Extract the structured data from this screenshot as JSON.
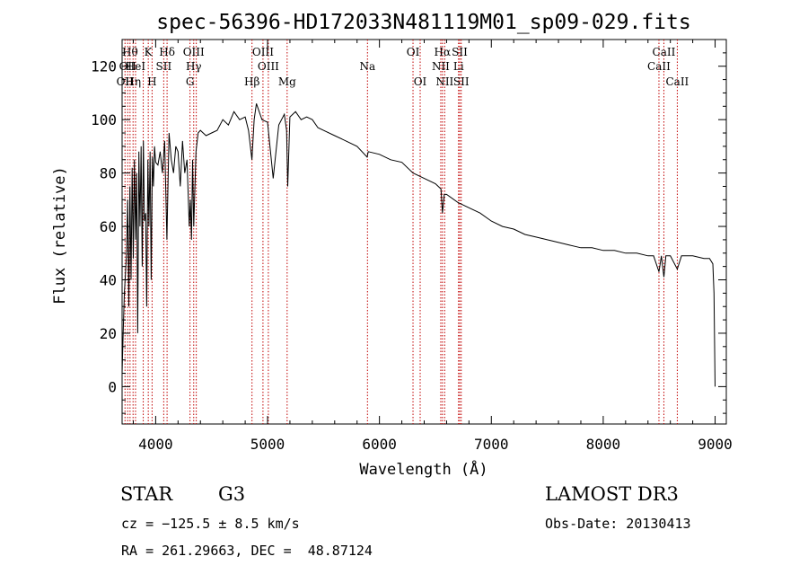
{
  "chart_data": {
    "type": "line",
    "title": "spec-56396-HD172033N481119M01_sp09-029.fits",
    "xlabel": "Wavelength (Å)",
    "ylabel": "Flux (relative)",
    "xlim": [
      3700,
      9100
    ],
    "ylim": [
      -14,
      130
    ],
    "xticks": [
      4000,
      5000,
      6000,
      7000,
      8000,
      9000
    ],
    "yticks": [
      0,
      20,
      40,
      60,
      80,
      100,
      120
    ],
    "grid": false,
    "series": [
      {
        "name": "flux",
        "x": [
          3700,
          3710,
          3720,
          3730,
          3740,
          3750,
          3760,
          3770,
          3780,
          3790,
          3800,
          3810,
          3820,
          3830,
          3840,
          3850,
          3860,
          3870,
          3880,
          3890,
          3900,
          3910,
          3920,
          3930,
          3940,
          3950,
          3960,
          3970,
          3980,
          3990,
          4000,
          4020,
          4040,
          4060,
          4080,
          4100,
          4120,
          4140,
          4160,
          4180,
          4200,
          4220,
          4240,
          4260,
          4280,
          4300,
          4310,
          4320,
          4330,
          4340,
          4360,
          4380,
          4400,
          4450,
          4500,
          4550,
          4600,
          4650,
          4700,
          4750,
          4800,
          4830,
          4860,
          4880,
          4900,
          4950,
          5000,
          5050,
          5100,
          5150,
          5170,
          5180,
          5200,
          5250,
          5300,
          5350,
          5400,
          5450,
          5500,
          5600,
          5700,
          5800,
          5890,
          5900,
          6000,
          6100,
          6200,
          6300,
          6400,
          6500,
          6550,
          6563,
          6580,
          6600,
          6700,
          6800,
          6900,
          7000,
          7100,
          7200,
          7300,
          7400,
          7500,
          7600,
          7700,
          7800,
          7900,
          8000,
          8100,
          8200,
          8300,
          8400,
          8450,
          8498,
          8520,
          8542,
          8560,
          8600,
          8662,
          8700,
          8800,
          8900,
          8950,
          8980,
          8990,
          9000
        ],
        "y": [
          5,
          20,
          35,
          42,
          50,
          70,
          30,
          75,
          40,
          82,
          48,
          85,
          55,
          80,
          20,
          88,
          60,
          90,
          45,
          92,
          62,
          65,
          30,
          85,
          60,
          88,
          40,
          86,
          75,
          90,
          84,
          83,
          88,
          80,
          92,
          55,
          95,
          85,
          80,
          90,
          88,
          75,
          92,
          80,
          85,
          60,
          70,
          55,
          85,
          60,
          88,
          95,
          96,
          94,
          95,
          96,
          100,
          98,
          103,
          100,
          101,
          96,
          85,
          100,
          106,
          100,
          99,
          78,
          98,
          102,
          96,
          75,
          101,
          103,
          100,
          101,
          100,
          97,
          96,
          94,
          92,
          90,
          86,
          88,
          87,
          85,
          84,
          80,
          78,
          76,
          74,
          65,
          72,
          72,
          69,
          67,
          65,
          62,
          60,
          59,
          57,
          56,
          55,
          54,
          53,
          52,
          52,
          51,
          51,
          50,
          50,
          49,
          49,
          43,
          49,
          41,
          49,
          49,
          44,
          49,
          49,
          48,
          48,
          46,
          35,
          0
        ]
      }
    ],
    "lines": [
      {
        "x": 3726,
        "labels": [
          "OII"
        ],
        "row": [
          3
        ]
      },
      {
        "x": 3750,
        "labels": [
          "OII"
        ],
        "row": [
          2
        ]
      },
      {
        "x": 3771,
        "labels": [
          "Hθ"
        ],
        "row": [
          1
        ]
      },
      {
        "x": 3798,
        "labels": [
          "Hη"
        ],
        "row": [
          3
        ]
      },
      {
        "x": 3820,
        "labels": [
          "HeI"
        ],
        "row": [
          2
        ]
      },
      {
        "x": 3889,
        "labels": [],
        "row": []
      },
      {
        "x": 3934,
        "labels": [
          "K"
        ],
        "row": [
          1
        ]
      },
      {
        "x": 3968,
        "labels": [
          "H"
        ],
        "row": [
          3
        ]
      },
      {
        "x": 4072,
        "labels": [
          "SII"
        ],
        "row": [
          2
        ]
      },
      {
        "x": 4102,
        "labels": [
          "Hδ"
        ],
        "row": [
          1
        ]
      },
      {
        "x": 4307,
        "labels": [
          "G"
        ],
        "row": [
          3
        ]
      },
      {
        "x": 4340,
        "labels": [
          "OIII",
          "Hγ"
        ],
        "row": [
          1,
          2
        ]
      },
      {
        "x": 4363,
        "labels": [],
        "row": []
      },
      {
        "x": 4861,
        "labels": [
          "Hβ"
        ],
        "row": [
          3
        ]
      },
      {
        "x": 4959,
        "labels": [
          "OIII"
        ],
        "row": [
          1
        ]
      },
      {
        "x": 5007,
        "labels": [
          "OIII"
        ],
        "row": [
          2
        ]
      },
      {
        "x": 5175,
        "labels": [
          "Mg"
        ],
        "row": [
          3
        ]
      },
      {
        "x": 5893,
        "labels": [
          "Na"
        ],
        "row": [
          2
        ]
      },
      {
        "x": 6300,
        "labels": [
          "OI"
        ],
        "row": [
          1
        ]
      },
      {
        "x": 6364,
        "labels": [
          "OI"
        ],
        "row": [
          3
        ]
      },
      {
        "x": 6548,
        "labels": [
          "NII"
        ],
        "row": [
          2
        ]
      },
      {
        "x": 6563,
        "labels": [
          "Hα"
        ],
        "row": [
          1
        ]
      },
      {
        "x": 6583,
        "labels": [
          "NII"
        ],
        "row": [
          3
        ]
      },
      {
        "x": 6707,
        "labels": [
          "Li"
        ],
        "row": [
          2
        ]
      },
      {
        "x": 6717,
        "labels": [
          "SII"
        ],
        "row": [
          1
        ]
      },
      {
        "x": 6731,
        "labels": [
          "SII"
        ],
        "row": [
          3
        ]
      },
      {
        "x": 8498,
        "labels": [
          "CaII"
        ],
        "row": [
          2
        ]
      },
      {
        "x": 8542,
        "labels": [
          "CaII"
        ],
        "row": [
          1
        ]
      },
      {
        "x": 8662,
        "labels": [
          "CaII"
        ],
        "row": [
          3
        ]
      }
    ]
  },
  "info": {
    "object_class": "STAR",
    "subclass": "G3",
    "survey": "LAMOST DR3",
    "cz": "cz = −125.5 ± 8.5 km/s",
    "obs_date": "Obs-Date: 20130413",
    "coords": "RA = 261.29663, DEC =  48.87124"
  }
}
